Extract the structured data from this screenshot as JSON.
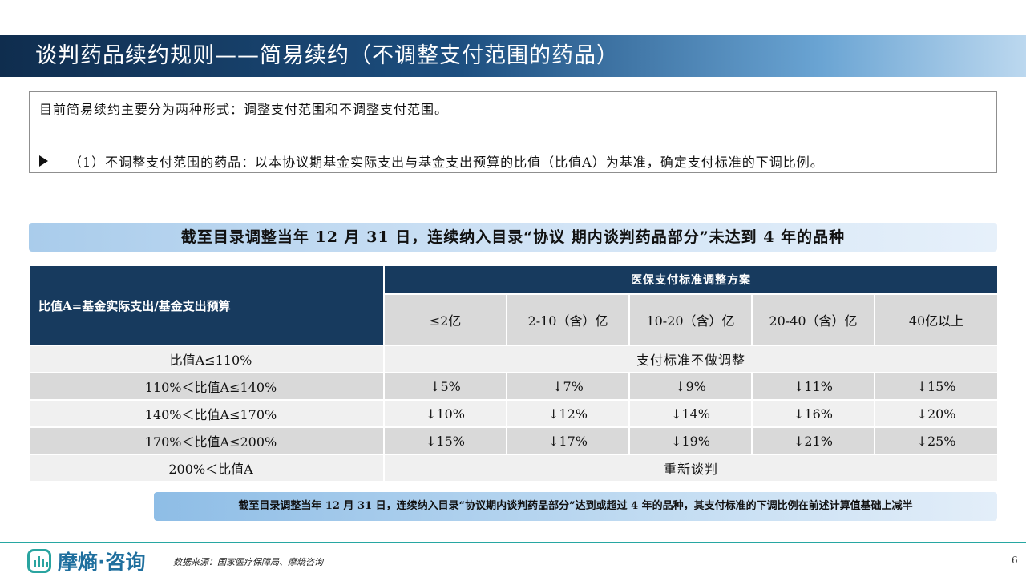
{
  "title": "谈判药品续约规则——简易续约（不调整支付范围的药品）",
  "intro": {
    "line1": "目前简易续约主要分为两种形式：调整支付范围和不调整支付范围。",
    "line2": "（1）不调整支付范围的药品：以本协议期基金实际支出与基金支出预算的比值（比值A）为基准，确定支付标准的下调比例。"
  },
  "banner": "截至目录调整当年 12 月 31 日，连续纳入目录“协议 期内谈判药品部分”未达到 4 年的品种",
  "table": {
    "corner_header": "比值A=基金实际支出/基金支出预算",
    "plan_header": "医保支付标准调整方案",
    "bands": [
      "≤2亿",
      "2-10（含）亿",
      "10-20（含）亿",
      "20-40（含）亿",
      "40亿以上"
    ],
    "rows": [
      {
        "label": "比值A≤110%",
        "span": "支付标准不做调整"
      },
      {
        "label": "110%＜比值A≤140%",
        "cells": [
          "↓5%",
          "↓7%",
          "↓9%",
          "↓11%",
          "↓15%"
        ]
      },
      {
        "label": "140%＜比值A≤170%",
        "cells": [
          "↓10%",
          "↓12%",
          "↓14%",
          "↓16%",
          "↓20%"
        ]
      },
      {
        "label": "170%＜比值A≤200%",
        "cells": [
          "↓15%",
          "↓17%",
          "↓19%",
          "↓21%",
          "↓25%"
        ]
      },
      {
        "label": "200%＜比值A",
        "span": "重新谈判"
      }
    ]
  },
  "note": "截至目录调整当年 12 月 31 日，连续纳入目录“协议期内谈判药品部分”达到或超过 4 年的品种，其支付标准的下调比例在前述计算值基础上减半",
  "footer": {
    "logo_text": "摩熵·咨询",
    "source": "数据来源：国家医疗保障局、摩熵咨询",
    "page_number": "6"
  },
  "colors": {
    "header_navy": "#173a5e",
    "accent_teal": "#27a7a2"
  }
}
